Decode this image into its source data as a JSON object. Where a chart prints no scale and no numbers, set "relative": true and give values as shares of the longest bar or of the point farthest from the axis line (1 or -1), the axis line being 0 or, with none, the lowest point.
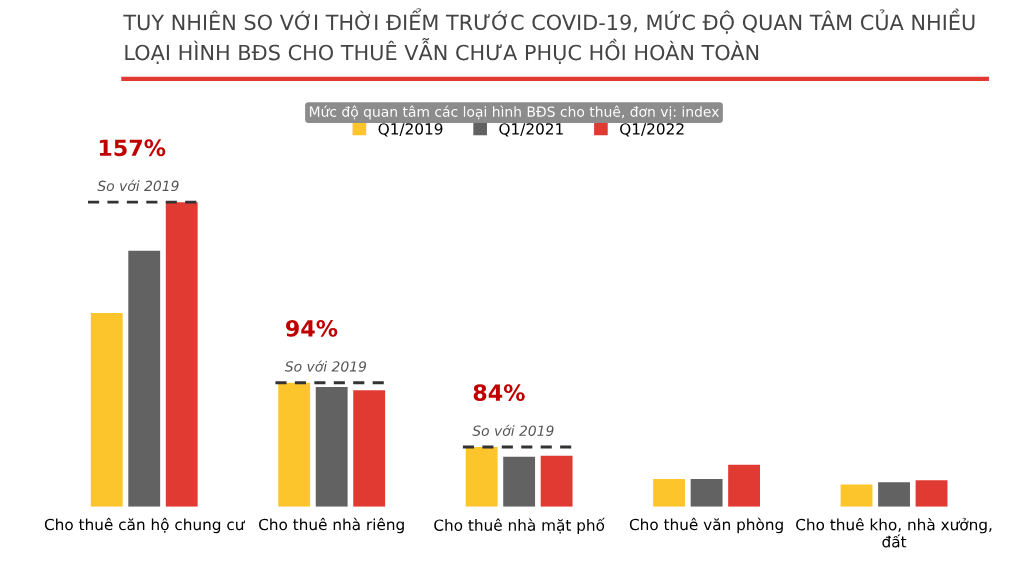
{
  "chart_data": {
    "type": "bar",
    "relative": true,
    "title": "TUY NHIÊN SO VỚI THỜI ĐIỂM TRƯỚC COVID-19, MỨC ĐỘ QUAN TÂM CỦA NHIỀU LOẠI HÌNH BĐS CHO THUÊ VẪN CHƯA PHỤC HỒI HOÀN TOÀN",
    "subtitle": "Mức độ quan tâm các loại hình BĐS cho thuê, đơn vị: index",
    "categories": [
      "Cho thuê căn hộ chung cư",
      "Cho thuê nhà riêng",
      "Cho thuê nhà mặt phố",
      "Cho thuê văn phòng",
      "Cho thuê kho, nhà xưởng,\nđất"
    ],
    "series": [
      {
        "name": "Q1/2019",
        "color": "#fcc52c",
        "values": [
          0.636,
          0.407,
          0.196,
          0.091,
          0.073
        ]
      },
      {
        "name": "Q1/2021",
        "color": "#626262",
        "values": [
          0.84,
          0.393,
          0.164,
          0.091,
          0.08
        ]
      },
      {
        "name": "Q1/2022",
        "color": "#e03a32",
        "values": [
          1.0,
          0.382,
          0.167,
          0.138,
          0.087
        ]
      }
    ],
    "annotations": [
      "157%",
      "So với 2019",
      "94%",
      "So với 2019",
      "84%",
      "So với 2019"
    ],
    "legend": "top",
    "grid": false
  }
}
